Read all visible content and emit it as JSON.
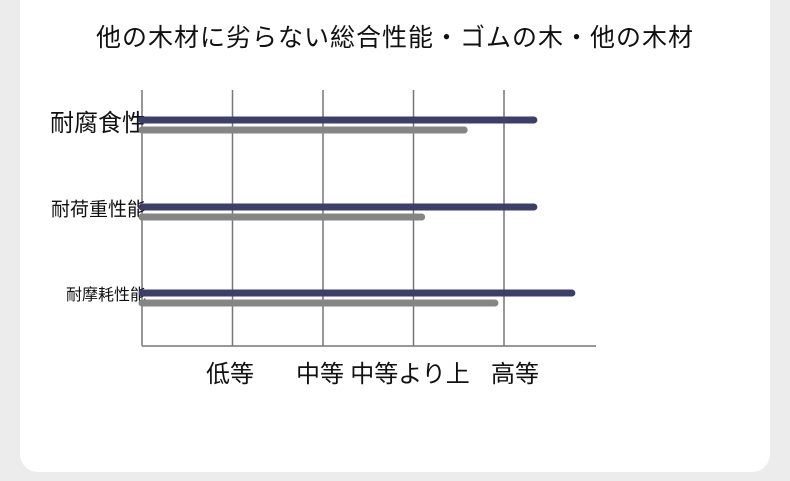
{
  "chart_data": {
    "type": "bar",
    "orientation": "horizontal",
    "title": "他の木材に劣らない総合性能・ゴムの木・他の木材",
    "categories": [
      "耐腐食性",
      "耐荷重性能",
      "耐摩耗性能"
    ],
    "series": [
      {
        "values": [
          4.33,
          4.33,
          4.75
        ],
        "color": "#3d3f6b"
      },
      {
        "values": [
          3.56,
          3.09,
          3.9
        ],
        "color": "#858585"
      }
    ],
    "x_tick_labels": [
      "低等",
      "中等",
      "中等より上",
      "高等"
    ],
    "xlim": [
      0,
      5
    ],
    "grid": true
  }
}
